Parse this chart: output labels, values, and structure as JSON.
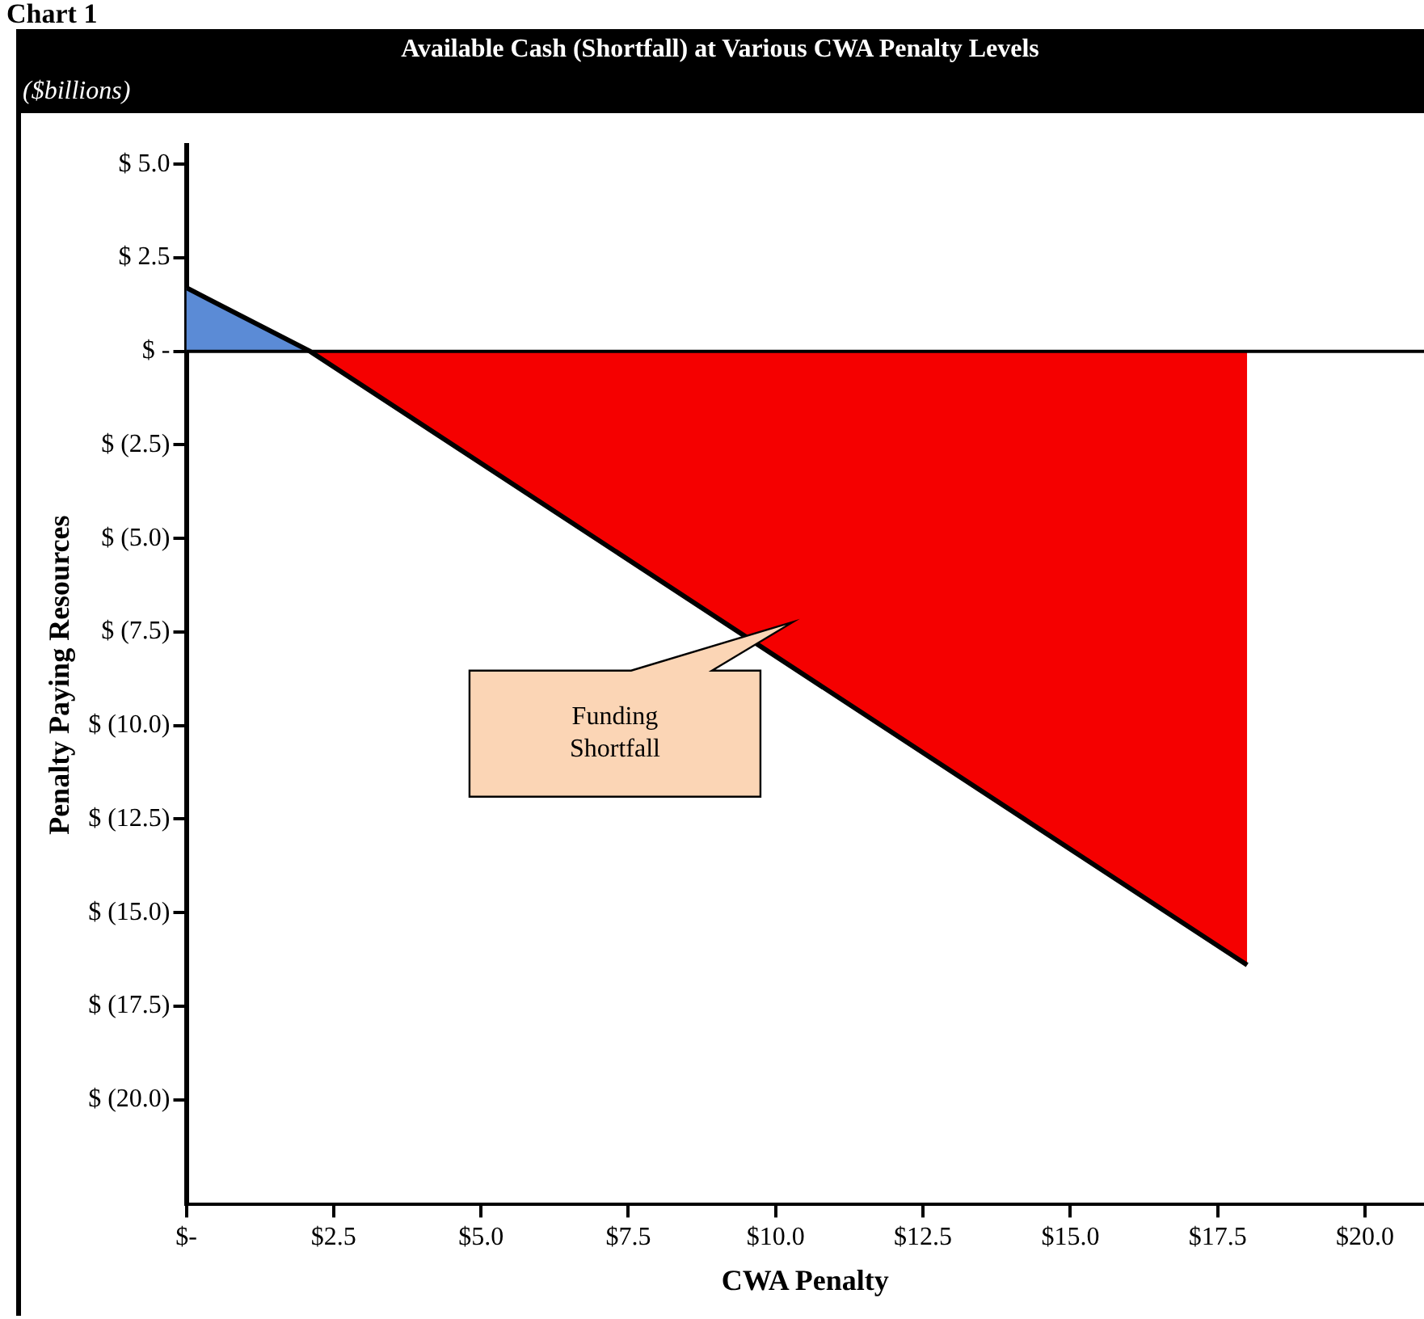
{
  "chart_data": {
    "type": "area",
    "title": "Available Cash (Shortfall) at Various CWA Penalty Levels",
    "subtitle": "($billions)",
    "xlabel": "CWA Penalty",
    "ylabel": "Penalty Paying Resources",
    "annotations": [
      "Chart 1",
      "Funding Shortfall"
    ],
    "series": [
      {
        "color": "#5b8bd6",
        "x": [
          0,
          2.1
        ],
        "values": [
          1.7,
          0
        ]
      },
      {
        "color": "#f50000",
        "x": [
          2.1,
          18
        ],
        "values": [
          0,
          -16.4
        ]
      },
      {
        "type": "line",
        "color": "#000000",
        "x": [
          0,
          2.1,
          18
        ],
        "values": [
          1.7,
          0,
          -16.4
        ]
      }
    ],
    "xlim": [
      0,
      21
    ],
    "ylim": [
      -22.8,
      5.5
    ],
    "xticks": [
      {
        "value": 0,
        "label": "$-"
      },
      {
        "value": 2.5,
        "label": "$2.5"
      },
      {
        "value": 5,
        "label": "$5.0"
      },
      {
        "value": 7.5,
        "label": "$7.5"
      },
      {
        "value": 10,
        "label": "$10.0"
      },
      {
        "value": 12.5,
        "label": "$12.5"
      },
      {
        "value": 15,
        "label": "$15.0"
      },
      {
        "value": 17.5,
        "label": "$17.5"
      },
      {
        "value": 20,
        "label": "$20.0"
      }
    ],
    "yticks": [
      {
        "value": 5,
        "label": "$ 5.0"
      },
      {
        "value": 2.5,
        "label": "$ 2.5"
      },
      {
        "value": 0,
        "label": "$ -"
      },
      {
        "value": -2.5,
        "label": "$ (2.5)"
      },
      {
        "value": -5,
        "label": "$ (5.0)"
      },
      {
        "value": -7.5,
        "label": "$ (7.5)"
      },
      {
        "value": -10,
        "label": "$ (10.0)"
      },
      {
        "value": -12.5,
        "label": "$ (12.5)"
      },
      {
        "value": -15,
        "label": "$ (15.0)"
      },
      {
        "value": -17.5,
        "label": "$ (17.5)"
      },
      {
        "value": -20,
        "label": "$ (20.0)"
      }
    ],
    "ref_lines": [
      {
        "axis": "y",
        "value": 0,
        "color": "#000000"
      }
    ],
    "grid": false,
    "legend": false
  }
}
